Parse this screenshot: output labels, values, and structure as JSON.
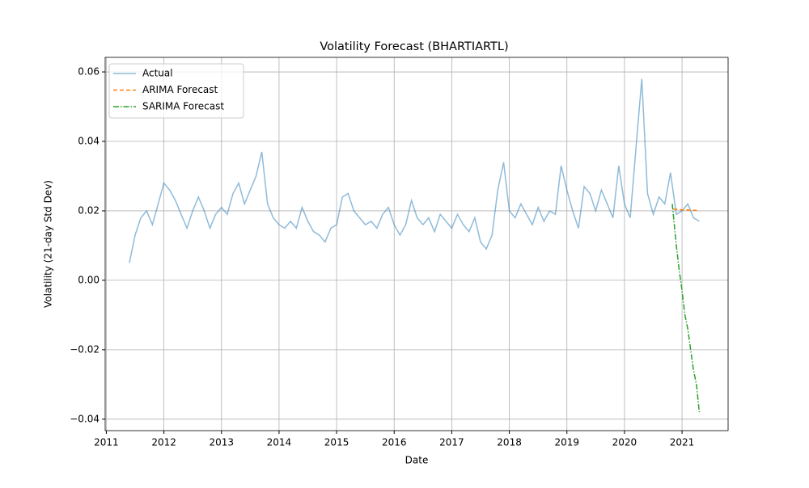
{
  "chart_data": {
    "type": "line",
    "title": "Volatility Forecast (BHARTIARTL)",
    "x_label": "Date",
    "y_label": "Volatility (21-day Std Dev)",
    "xlim": [
      2010.98,
      2021.8
    ],
    "ylim": [
      -0.0433,
      0.0642
    ],
    "xticks": [
      2011,
      2012,
      2013,
      2014,
      2015,
      2016,
      2017,
      2018,
      2019,
      2020,
      2021
    ],
    "yticks": [
      {
        "value": -0.04,
        "label": "−0.04"
      },
      {
        "value": -0.02,
        "label": "−0.02"
      },
      {
        "value": 0,
        "label": "0.00"
      },
      0.02,
      0.04,
      0.06
    ],
    "grid": true,
    "legend": "upper left",
    "series": [
      {
        "name": "Actual",
        "color": "#1f77b4",
        "alpha": 0.5,
        "dash": "solid",
        "x": [
          2011.4,
          2011.5,
          2011.6,
          2011.7,
          2011.8,
          2011.9,
          2012.0,
          2012.1,
          2012.2,
          2012.3,
          2012.4,
          2012.5,
          2012.6,
          2012.7,
          2012.8,
          2012.9,
          2013.0,
          2013.1,
          2013.2,
          2013.3,
          2013.4,
          2013.5,
          2013.6,
          2013.7,
          2013.8,
          2013.9,
          2014.0,
          2014.1,
          2014.2,
          2014.3,
          2014.4,
          2014.5,
          2014.6,
          2014.7,
          2014.8,
          2014.9,
          2015.0,
          2015.1,
          2015.2,
          2015.3,
          2015.4,
          2015.5,
          2015.6,
          2015.7,
          2015.8,
          2015.9,
          2016.0,
          2016.1,
          2016.2,
          2016.3,
          2016.4,
          2016.5,
          2016.6,
          2016.7,
          2016.8,
          2016.9,
          2017.0,
          2017.1,
          2017.2,
          2017.3,
          2017.4,
          2017.5,
          2017.6,
          2017.7,
          2017.8,
          2017.9,
          2018.0,
          2018.1,
          2018.2,
          2018.3,
          2018.4,
          2018.5,
          2018.6,
          2018.7,
          2018.8,
          2018.9,
          2019.0,
          2019.1,
          2019.2,
          2019.3,
          2019.4,
          2019.5,
          2019.6,
          2019.7,
          2019.8,
          2019.9,
          2020.0,
          2020.1,
          2020.2,
          2020.3,
          2020.4,
          2020.5,
          2020.6,
          2020.7,
          2020.8,
          2020.9,
          2021.0,
          2021.1,
          2021.2,
          2021.3
        ],
        "values": [
          0.005,
          0.013,
          0.018,
          0.02,
          0.016,
          0.022,
          0.028,
          0.026,
          0.023,
          0.019,
          0.015,
          0.02,
          0.024,
          0.02,
          0.015,
          0.019,
          0.021,
          0.019,
          0.025,
          0.028,
          0.022,
          0.026,
          0.03,
          0.037,
          0.022,
          0.018,
          0.016,
          0.015,
          0.017,
          0.015,
          0.021,
          0.017,
          0.014,
          0.013,
          0.011,
          0.015,
          0.016,
          0.024,
          0.025,
          0.02,
          0.018,
          0.016,
          0.017,
          0.015,
          0.019,
          0.021,
          0.016,
          0.013,
          0.016,
          0.023,
          0.018,
          0.016,
          0.018,
          0.014,
          0.019,
          0.017,
          0.015,
          0.019,
          0.016,
          0.014,
          0.018,
          0.011,
          0.009,
          0.013,
          0.026,
          0.034,
          0.02,
          0.018,
          0.022,
          0.019,
          0.016,
          0.021,
          0.017,
          0.02,
          0.019,
          0.033,
          0.026,
          0.02,
          0.015,
          0.027,
          0.025,
          0.02,
          0.026,
          0.022,
          0.018,
          0.033,
          0.022,
          0.018,
          0.038,
          0.058,
          0.025,
          0.019,
          0.024,
          0.022,
          0.031,
          0.019,
          0.02,
          0.022,
          0.018,
          0.017
        ]
      },
      {
        "name": "ARIMA Forecast",
        "color": "#ff7f0e",
        "alpha": 1,
        "dash": "dashed",
        "x": [
          2020.85,
          2021.0,
          2021.15,
          2021.3
        ],
        "values": [
          0.0205,
          0.0203,
          0.0202,
          0.0201
        ]
      },
      {
        "name": "SARIMA Forecast",
        "color": "#2ca02c",
        "alpha": 1,
        "dash": "dashdot",
        "x": [
          2020.83,
          2020.9,
          2020.95,
          2021.0,
          2021.05,
          2021.1,
          2021.15,
          2021.2,
          2021.25,
          2021.3
        ],
        "values": [
          0.022,
          0.01,
          0.003,
          -0.003,
          -0.01,
          -0.014,
          -0.02,
          -0.026,
          -0.03,
          -0.038
        ]
      }
    ]
  }
}
